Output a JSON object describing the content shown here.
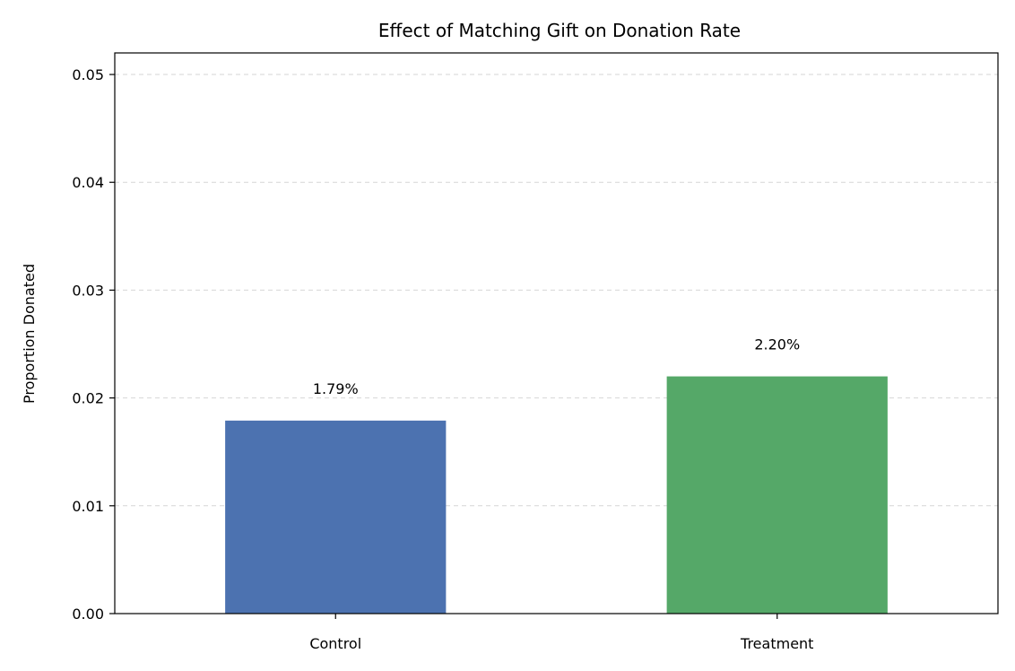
{
  "chart_data": {
    "type": "bar",
    "title": "Effect of Matching Gift on Donation Rate",
    "xlabel": "",
    "ylabel": "Proportion Donated",
    "categories": [
      "Control",
      "Treatment"
    ],
    "values": [
      0.0179,
      0.022
    ],
    "value_labels": [
      "1.79%",
      "2.20%"
    ],
    "colors": [
      "#4c72b0",
      "#55a868"
    ],
    "ylim": [
      0,
      0.052
    ],
    "yticks": [
      0.0,
      0.01,
      0.02,
      0.03,
      0.04,
      0.05
    ],
    "ytick_labels": [
      "0.00",
      "0.01",
      "0.02",
      "0.03",
      "0.04",
      "0.05"
    ],
    "grid": "y-dashed"
  }
}
